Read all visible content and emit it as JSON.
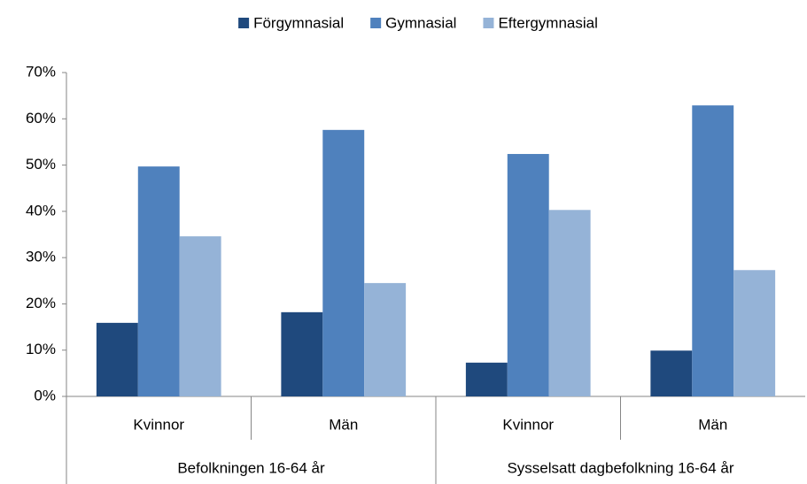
{
  "chart_data": {
    "type": "bar",
    "groups": [
      {
        "name": "Befolkningen 16-64 år",
        "categories": [
          "Kvinnor",
          "Män"
        ]
      },
      {
        "name": "Sysselsatt dagbefolkning 16-64 år",
        "categories": [
          "Kvinnor",
          "Män"
        ]
      }
    ],
    "series": [
      {
        "name": "Förgymnasial",
        "color": "#1F497D",
        "values": [
          15.9,
          18.2,
          7.3,
          9.9
        ]
      },
      {
        "name": "Gymnasial",
        "color": "#4F81BD",
        "values": [
          49.7,
          57.6,
          52.4,
          62.9
        ]
      },
      {
        "name": "Eftergymnasial",
        "color": "#95B3D7",
        "values": [
          34.6,
          24.5,
          40.3,
          27.3
        ]
      }
    ],
    "ylim": [
      0,
      70
    ],
    "yticks": [
      {
        "value": 0,
        "label": "0%"
      },
      {
        "value": 10,
        "label": "10%"
      },
      {
        "value": 20,
        "label": "20%"
      },
      {
        "value": 30,
        "label": "30%"
      },
      {
        "value": 40,
        "label": "40%"
      },
      {
        "value": 50,
        "label": "50%"
      },
      {
        "value": 60,
        "label": "60%"
      },
      {
        "value": 70,
        "label": "70%"
      }
    ],
    "grid": false,
    "legend": "top"
  }
}
